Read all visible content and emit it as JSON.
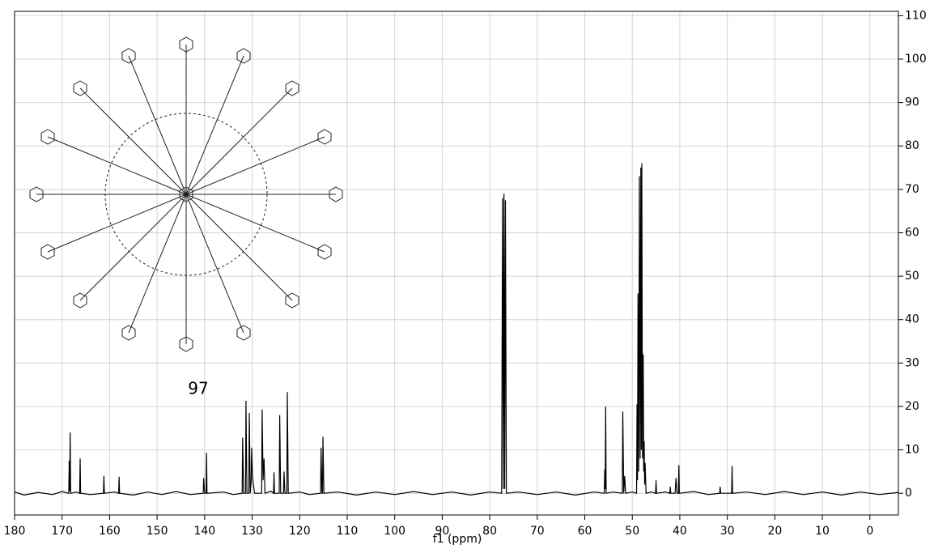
{
  "chart_data": {
    "type": "line",
    "x_label": "f1 (ppm)",
    "annotation": "97",
    "xlim": [
      180,
      -6
    ],
    "ylim": [
      -5,
      111
    ],
    "xticks": [
      180,
      170,
      160,
      150,
      140,
      130,
      120,
      110,
      100,
      90,
      80,
      70,
      60,
      50,
      40,
      30,
      20,
      10,
      0
    ],
    "yticks": [
      0,
      10,
      20,
      30,
      40,
      50,
      60,
      70,
      80,
      90,
      100,
      110
    ],
    "grid": true,
    "series": [
      {
        "color": "#000000",
        "x": [
          180,
          178,
          175,
          172,
          170,
          168.6,
          168.5,
          168.4,
          168.3,
          168.2,
          167,
          166.3,
          166.2,
          166.1,
          164,
          161.3,
          161.2,
          161.1,
          159,
          158.1,
          158,
          157.9,
          155,
          152,
          149,
          146,
          143,
          140.3,
          140.2,
          140,
          139.7,
          139.6,
          139.5,
          136,
          134,
          132.1,
          132,
          131.8,
          131.4,
          131.3,
          131.1,
          130.7,
          130.6,
          130.4,
          130.2,
          130.1,
          129.9,
          129.5,
          128,
          127.9,
          127.7,
          127.5,
          127.3,
          126,
          125.5,
          125.4,
          125.3,
          124.3,
          124.2,
          124,
          123.4,
          123.3,
          123.1,
          122.7,
          122.6,
          122.4,
          120,
          118,
          115.6,
          115.5,
          115.3,
          115.2,
          115.1,
          114.9,
          112,
          108,
          104,
          100,
          96,
          92,
          88,
          84,
          80,
          77.5,
          77.3,
          77.15,
          77,
          76.85,
          76.7,
          76.5,
          74,
          70,
          66,
          62,
          58,
          55.9,
          55.8,
          55.7,
          55.6,
          55.5,
          54,
          52.1,
          52,
          51.8,
          51.6,
          51.4,
          50,
          49.1,
          49,
          48.9,
          48.8,
          48.65,
          48.5,
          48.35,
          48.2,
          48.1,
          48,
          47.85,
          47.7,
          47.6,
          47.5,
          47.4,
          47.3,
          47.1,
          46,
          45.1,
          45,
          44.9,
          43,
          42.1,
          42,
          41.9,
          41,
          40.8,
          40.6,
          40.3,
          40.2,
          40.1,
          37,
          34,
          31.6,
          31.5,
          31.4,
          29.1,
          29,
          28.9,
          26,
          22,
          18,
          14,
          10,
          6,
          2,
          -2,
          -6
        ],
        "values": [
          0.3,
          -0.4,
          0.2,
          -0.3,
          0.4,
          0,
          7.5,
          0.5,
          14,
          0,
          0.3,
          0,
          8,
          0,
          -0.3,
          0,
          4,
          0,
          0.3,
          0,
          3.8,
          0,
          -0.4,
          0.3,
          -0.3,
          0.4,
          -0.3,
          0,
          3.5,
          0,
          0,
          9.3,
          0,
          0.3,
          -0.3,
          0,
          12.8,
          0,
          0,
          21.3,
          0,
          0,
          18.5,
          0,
          3,
          10.5,
          3.5,
          0,
          0,
          19.3,
          3,
          8,
          0,
          0.5,
          0,
          4.8,
          0,
          0,
          18,
          0,
          0,
          5,
          0,
          0,
          23.3,
          0,
          0.3,
          -0.3,
          0,
          10.5,
          0,
          0,
          13,
          0,
          0.3,
          -0.4,
          0.3,
          -0.3,
          0.4,
          -0.3,
          0.3,
          -0.4,
          0.3,
          0,
          68,
          1,
          69,
          1,
          67.5,
          0,
          0.3,
          -0.3,
          0.3,
          -0.4,
          0.3,
          0,
          5.5,
          1,
          20,
          0,
          0.3,
          0,
          18.8,
          0,
          4,
          0,
          0.3,
          0,
          20.5,
          3,
          46,
          5,
          73,
          8,
          75,
          10,
          76,
          8,
          32,
          5,
          12,
          2,
          7,
          0,
          0.3,
          0,
          3,
          0,
          0.3,
          0,
          1.5,
          0,
          0,
          3.5,
          0,
          0,
          6.5,
          0,
          0.4,
          -0.3,
          0,
          1.5,
          0,
          0,
          6.3,
          0,
          0.3,
          -0.3,
          0.4,
          -0.3,
          0.3,
          -0.4,
          0.3,
          -0.3,
          0.2
        ]
      }
    ]
  }
}
